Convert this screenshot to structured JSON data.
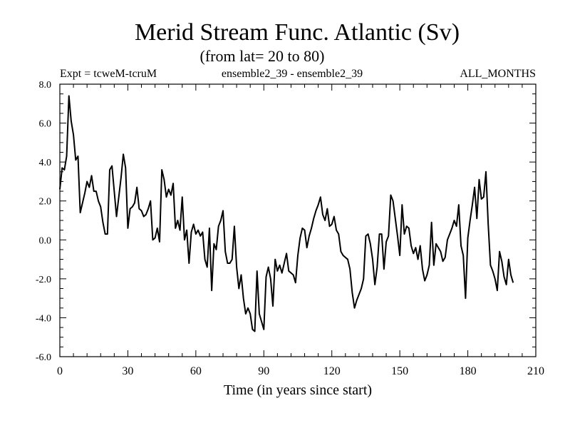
{
  "chart_data": {
    "type": "line",
    "title": "Merid Stream Func. Atlantic (Sv)",
    "subtitle": "(from lat= 20 to 80)",
    "header_left": "Expt = tcweM-tcruM",
    "header_center": "ensemble2_39 - ensemble2_39",
    "header_right": "ALL_MONTHS",
    "xlabel": "Time (in years since start)",
    "ylabel": "",
    "xlim": [
      0,
      210
    ],
    "ylim": [
      -6,
      8
    ],
    "xticks": [
      0,
      30,
      60,
      90,
      120,
      150,
      180,
      210
    ],
    "xtick_labels": [
      "0",
      "30",
      "60",
      "90",
      "120",
      "150",
      "180",
      "210"
    ],
    "yticks": [
      -6,
      -4,
      -2,
      0,
      2,
      4,
      6,
      8
    ],
    "ytick_labels": [
      "-6.0",
      "-4.0",
      "-2.0",
      "0.0",
      "2.0",
      "4.0",
      "6.0",
      "8.0"
    ],
    "grid": false,
    "series": [
      {
        "name": "Merid Stream Func.",
        "x": [
          0,
          1,
          2,
          3,
          4,
          5,
          6,
          7,
          8,
          9,
          10,
          11,
          12,
          13,
          14,
          15,
          16,
          17,
          18,
          19,
          20,
          21,
          22,
          23,
          24,
          25,
          26,
          27,
          28,
          29,
          30,
          31,
          32,
          33,
          34,
          35,
          36,
          37,
          38,
          39,
          40,
          41,
          42,
          43,
          44,
          45,
          46,
          47,
          48,
          49,
          50,
          51,
          52,
          53,
          54,
          55,
          56,
          57,
          58,
          59,
          60,
          61,
          62,
          63,
          64,
          65,
          66,
          67,
          68,
          69,
          70,
          71,
          72,
          73,
          74,
          75,
          76,
          77,
          78,
          79,
          80,
          81,
          82,
          83,
          84,
          85,
          86,
          87,
          88,
          89,
          90,
          91,
          92,
          93,
          94,
          95,
          96,
          97,
          98,
          99,
          100,
          101,
          102,
          103,
          104,
          105,
          106,
          107,
          108,
          109,
          110,
          111,
          112,
          113,
          114,
          115,
          116,
          117,
          118,
          119,
          120,
          121,
          122,
          123,
          124,
          125,
          126,
          127,
          128,
          129,
          130,
          131,
          132,
          133,
          134,
          135,
          136,
          137,
          138,
          139,
          140,
          141,
          142,
          143,
          144,
          145,
          146,
          147,
          148,
          149,
          150,
          151,
          152,
          153,
          154,
          155,
          156,
          157,
          158,
          159,
          160,
          161,
          162,
          163,
          164,
          165,
          166,
          167,
          168,
          169,
          170,
          171,
          172,
          173,
          174,
          175,
          176,
          177,
          178,
          179,
          180,
          181,
          182,
          183,
          184,
          185,
          186,
          187,
          188,
          189,
          190,
          191,
          192,
          193,
          194,
          195,
          196,
          197,
          198,
          199,
          200
        ],
        "values": [
          2.6,
          3.7,
          3.6,
          4.3,
          7.4,
          6.1,
          5.4,
          4.1,
          4.3,
          1.4,
          1.9,
          2.4,
          3.0,
          2.7,
          3.3,
          2.5,
          2.5,
          2.0,
          1.7,
          0.9,
          0.3,
          0.3,
          3.6,
          3.8,
          2.5,
          1.2,
          2.2,
          3.2,
          4.4,
          3.7,
          0.6,
          1.6,
          1.7,
          1.9,
          2.7,
          1.6,
          1.5,
          1.2,
          1.3,
          1.6,
          2.0,
          0.0,
          0.1,
          0.6,
          -0.1,
          3.6,
          3.1,
          2.2,
          2.6,
          2.3,
          2.9,
          0.6,
          1.0,
          0.5,
          2.2,
          0.0,
          0.5,
          -1.2,
          0.4,
          0.8,
          0.3,
          0.5,
          0.2,
          0.4,
          -1.0,
          -1.4,
          0.6,
          -2.6,
          -0.2,
          -0.5,
          0.7,
          1.0,
          1.5,
          -0.6,
          -1.2,
          -1.2,
          -1.0,
          0.7,
          -1.4,
          -2.5,
          -1.8,
          -3.0,
          -3.8,
          -3.5,
          -3.8,
          -4.6,
          -4.7,
          -1.6,
          -3.8,
          -4.2,
          -4.6,
          -1.9,
          -1.4,
          -2.0,
          -3.4,
          -1.0,
          -1.6,
          -1.3,
          -1.7,
          -1.2,
          -0.7,
          -1.6,
          -1.7,
          -1.8,
          -2.2,
          -0.8,
          0.1,
          0.6,
          0.5,
          -0.4,
          0.2,
          0.6,
          1.1,
          1.5,
          1.8,
          2.2,
          1.3,
          1.0,
          1.6,
          0.7,
          0.8,
          1.2,
          0.5,
          0.3,
          -0.6,
          -0.8,
          -0.9,
          -1.0,
          -1.5,
          -2.7,
          -3.5,
          -3.1,
          -2.8,
          -2.5,
          -2.0,
          0.2,
          0.3,
          -0.2,
          -1.0,
          -2.3,
          -1.4,
          0.3,
          0.3,
          -1.5,
          -0.1,
          0.2,
          2.3,
          2.0,
          1.1,
          0.2,
          -0.8,
          1.8,
          0.3,
          0.7,
          0.6,
          -0.3,
          -0.7,
          -0.4,
          -1.0,
          -0.3,
          -1.5,
          -2.1,
          -1.8,
          -1.3,
          0.9,
          -1.3,
          -0.2,
          -0.4,
          -0.6,
          -1.1,
          -0.9,
          0.0,
          0.3,
          0.6,
          1.0,
          0.7,
          1.8,
          -0.3,
          -0.8,
          -3.0,
          0.1,
          1.0,
          1.8,
          2.7,
          1.1,
          3.1,
          2.1,
          2.2,
          3.5,
          0.8,
          -1.3,
          -1.6,
          -2.0,
          -2.6,
          -0.6,
          -1.1,
          -1.9,
          -2.3,
          -1.0,
          -1.8,
          -2.2
        ]
      }
    ]
  },
  "colors": {
    "line": "#000000",
    "axes": "#000000",
    "background": "#ffffff"
  }
}
